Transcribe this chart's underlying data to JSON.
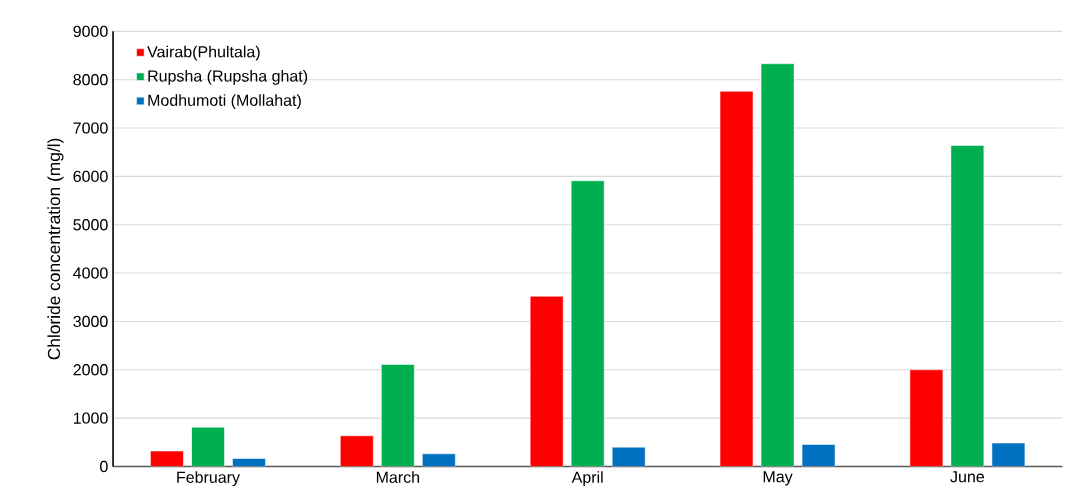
{
  "chart_data": {
    "type": "bar",
    "ylabel": "Chloride concentration (mg/l)",
    "categories": [
      "February",
      "March",
      "April",
      "May",
      "June"
    ],
    "series": [
      {
        "name": "Vairab(Phultala)",
        "color": "#ff0000",
        "values": [
          320,
          635,
          3520,
          7760,
          2000
        ]
      },
      {
        "name": "Rupsha (Rupsha ghat)",
        "color": "#00b050",
        "values": [
          810,
          2110,
          5910,
          8330,
          6640
        ]
      },
      {
        "name": "Modhumoti (Mollahat)",
        "color": "#0070c0",
        "values": [
          165,
          263,
          400,
          455,
          485
        ]
      }
    ],
    "ylim": [
      0,
      9000
    ],
    "yticks": [
      0,
      1000,
      2000,
      3000,
      4000,
      5000,
      6000,
      7000,
      8000,
      9000
    ],
    "grid": "y",
    "legend": "top left"
  }
}
